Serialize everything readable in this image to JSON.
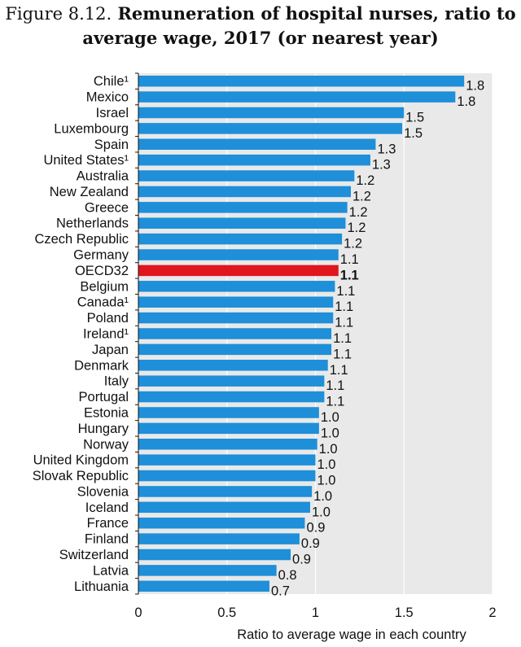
{
  "figure": {
    "label": "Figure 8.12.",
    "title_line1": "Remuneration of hospital nurses, ratio to",
    "title_line2": "average wage, 2017 (or nearest year)"
  },
  "chart_data": {
    "type": "bar",
    "orientation": "horizontal",
    "categories": [
      "Chile¹",
      "Mexico",
      "Israel",
      "Luxembourg",
      "Spain",
      "United States¹",
      "Australia",
      "New Zealand",
      "Greece",
      "Netherlands",
      "Czech Republic",
      "Germany",
      "OECD32",
      "Belgium",
      "Canada¹",
      "Poland",
      "Ireland¹",
      "Japan",
      "Denmark",
      "Italy",
      "Portugal",
      "Estonia",
      "Hungary",
      "Norway",
      "United Kingdom",
      "Slovak Republic",
      "Slovenia",
      "Iceland",
      "France",
      "Finland",
      "Switzerland",
      "Latvia",
      "Lithuania"
    ],
    "values": [
      1.84,
      1.79,
      1.5,
      1.49,
      1.34,
      1.31,
      1.22,
      1.2,
      1.18,
      1.17,
      1.15,
      1.13,
      1.13,
      1.11,
      1.1,
      1.1,
      1.09,
      1.09,
      1.07,
      1.05,
      1.05,
      1.02,
      1.02,
      1.01,
      1.0,
      1.0,
      0.98,
      0.97,
      0.94,
      0.91,
      0.86,
      0.78,
      0.74
    ],
    "labels": [
      "1.8",
      "1.8",
      "1.5",
      "1.5",
      "1.3",
      "1.3",
      "1.2",
      "1.2",
      "1.2",
      "1.2",
      "1.2",
      "1.1",
      "1.1",
      "1.1",
      "1.1",
      "1.1",
      "1.1",
      "1.1",
      "1.1",
      "1.1",
      "1.1",
      "1.0",
      "1.0",
      "1.0",
      "1.0",
      "1.0",
      "1.0",
      "1.0",
      "0.9",
      "0.9",
      "0.9",
      "0.8",
      "0.7"
    ],
    "highlight": "OECD32",
    "xlim": [
      0,
      2
    ],
    "xticks": [
      "0",
      "0.5",
      "1",
      "1.5",
      "2"
    ],
    "xlabel": "Ratio to average wage in each country",
    "colors": {
      "bar": "#1e8fd8",
      "highlight": "#e0151d",
      "plot_bg": "#e9e9e9",
      "grid": "#ffffff"
    }
  }
}
